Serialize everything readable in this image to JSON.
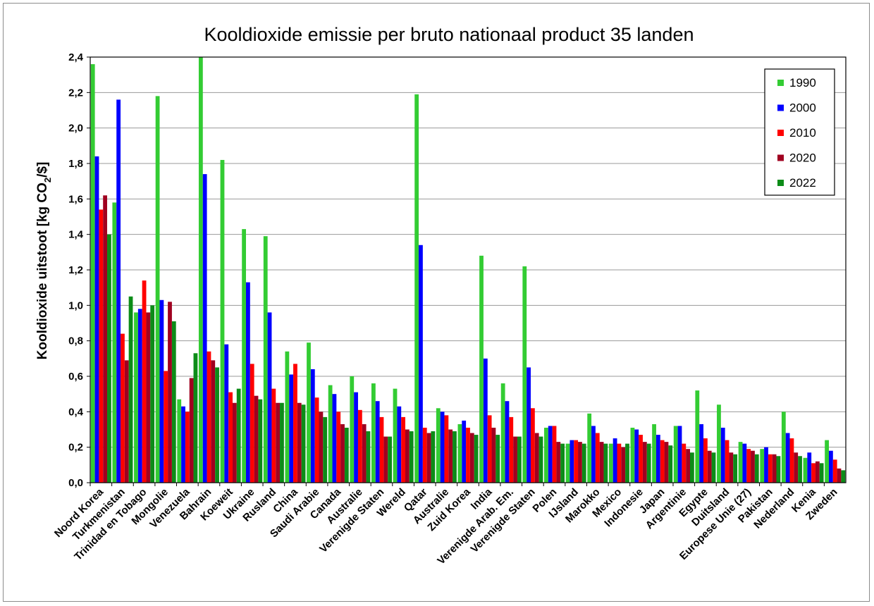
{
  "chart_data": {
    "type": "bar",
    "title": "Kooldioxide emissie per bruto nationaal product 35 landen",
    "ylabel_parts": [
      "Kooldioxide uitstoot [kg CO",
      "2",
      "/$]"
    ],
    "ylim": [
      0,
      2.4
    ],
    "yticks": [
      "0,0",
      "0,2",
      "0,4",
      "0,6",
      "0,8",
      "1,0",
      "1,2",
      "1,4",
      "1,6",
      "1,8",
      "2,0",
      "2,2",
      "2,4"
    ],
    "grid": true,
    "legend_position": "top-right",
    "categories": [
      "Noord Korea",
      "Turkmenistan",
      "Trinidad en Tobago",
      "Mongolie",
      "Venezuela",
      "Bahrain",
      "Koeweit",
      "Ukraine",
      "Rusland",
      "China",
      "Saudi Arabie",
      "Canada",
      "Australie",
      "Verenigde Staten",
      "Wereld",
      "Qatar",
      "Australie",
      "Zuid Korea",
      "India",
      "Verenigde Arab. Em.",
      "Verenigde Staten",
      "Polen",
      "IJsland",
      "Marokko",
      "Mexico",
      "Indonesie",
      "Japan",
      "Argentinie",
      "Egypte",
      "Duitsland",
      "Europese Unie (27)",
      "Pakistan",
      "Nederland",
      "Kenia",
      "Zweden"
    ],
    "series": [
      {
        "name": "1990",
        "color": "#33cc33",
        "values": [
          2.36,
          1.58,
          0.96,
          2.18,
          0.47,
          2.42,
          1.82,
          1.43,
          1.39,
          0.74,
          0.79,
          0.55,
          0.6,
          0.56,
          0.53,
          2.19,
          0.42,
          0.33,
          1.28,
          0.56,
          1.22,
          0.31,
          0.22,
          0.39,
          0.22,
          0.31,
          0.33,
          0.32,
          0.52,
          0.44,
          0.23,
          0.19,
          0.4,
          0.14,
          0.24
        ]
      },
      {
        "name": "2000",
        "color": "#0000ff",
        "values": [
          1.84,
          2.16,
          0.98,
          1.03,
          0.43,
          1.74,
          0.78,
          1.13,
          0.96,
          0.61,
          0.64,
          0.5,
          0.51,
          0.46,
          0.43,
          1.34,
          0.4,
          0.35,
          0.7,
          0.46,
          0.65,
          0.32,
          0.24,
          0.32,
          0.25,
          0.3,
          0.27,
          0.32,
          0.33,
          0.31,
          0.22,
          0.2,
          0.28,
          0.17,
          0.18
        ]
      },
      {
        "name": "2010",
        "color": "#ff0000",
        "values": [
          1.54,
          0.84,
          1.14,
          0.63,
          0.4,
          0.74,
          0.51,
          0.67,
          0.53,
          0.67,
          0.48,
          0.4,
          0.41,
          0.37,
          0.37,
          0.31,
          0.38,
          0.31,
          0.38,
          0.37,
          0.42,
          0.32,
          0.24,
          0.28,
          0.22,
          0.27,
          0.24,
          0.22,
          0.25,
          0.24,
          0.19,
          0.16,
          0.25,
          0.11,
          0.13
        ]
      },
      {
        "name": "2020",
        "color": "#a00020",
        "values": [
          1.62,
          0.69,
          0.96,
          1.02,
          0.59,
          0.69,
          0.45,
          0.49,
          0.45,
          0.45,
          0.4,
          0.33,
          0.33,
          0.26,
          0.3,
          0.28,
          0.3,
          0.28,
          0.31,
          0.26,
          0.28,
          0.23,
          0.23,
          0.23,
          0.2,
          0.23,
          0.23,
          0.19,
          0.18,
          0.17,
          0.18,
          0.16,
          0.17,
          0.12,
          0.08
        ]
      },
      {
        "name": "2022",
        "color": "#0c8c18",
        "values": [
          1.4,
          1.05,
          1.0,
          0.91,
          0.73,
          0.65,
          0.53,
          0.47,
          0.45,
          0.44,
          0.37,
          0.31,
          0.29,
          0.26,
          0.29,
          0.29,
          0.29,
          0.27,
          0.27,
          0.26,
          0.26,
          0.22,
          0.22,
          0.22,
          0.22,
          0.22,
          0.21,
          0.17,
          0.17,
          0.16,
          0.16,
          0.15,
          0.15,
          0.11,
          0.07
        ]
      }
    ]
  }
}
